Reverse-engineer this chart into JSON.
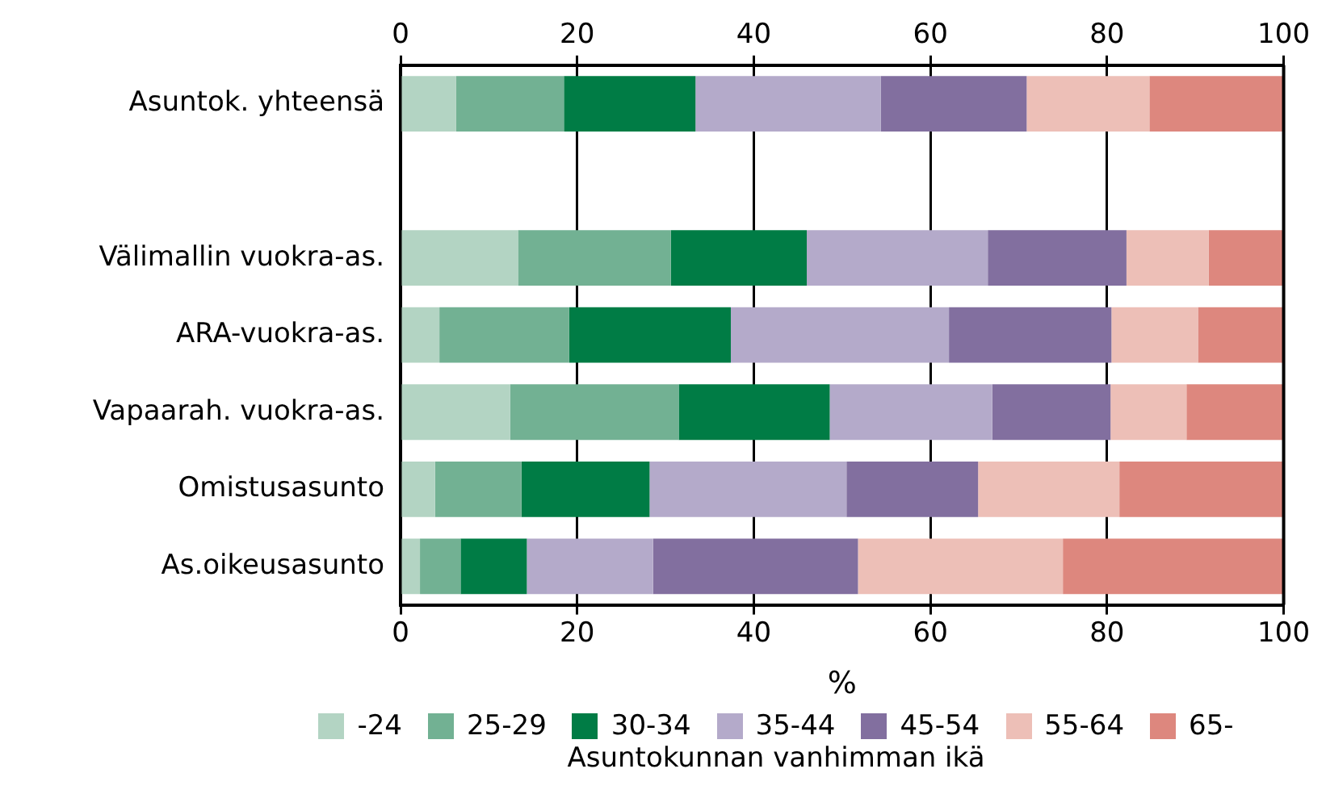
{
  "chart_data": {
    "type": "bar",
    "orientation": "horizontal",
    "stacked": true,
    "categories": [
      "Asuntok. yhteensä",
      null,
      "Välimallin vuokra-as.",
      "ARA-vuokra-as.",
      "Vapaarah. vuokra-as.",
      "Omistusasunto",
      "As.oikeusasunto"
    ],
    "series": [
      {
        "name": "-24",
        "color": "#b3d4c3",
        "values": [
          6.3,
          null,
          13.3,
          4.4,
          12.4,
          3.9,
          2.2
        ]
      },
      {
        "name": "25-29",
        "color": "#72b193",
        "values": [
          12.2,
          null,
          17.3,
          14.7,
          19.1,
          9.8,
          4.6
        ]
      },
      {
        "name": "30-34",
        "color": "#007c45",
        "values": [
          14.9,
          null,
          15.4,
          18.3,
          17.1,
          14.5,
          7.5
        ]
      },
      {
        "name": "35-44",
        "color": "#b4aaca",
        "values": [
          21.0,
          null,
          20.5,
          24.7,
          18.4,
          22.3,
          14.3
        ]
      },
      {
        "name": "45-54",
        "color": "#826f9f",
        "values": [
          16.5,
          null,
          15.7,
          18.4,
          13.4,
          14.9,
          23.2
        ]
      },
      {
        "name": "55-64",
        "color": "#edbfb7",
        "values": [
          13.9,
          null,
          9.3,
          9.8,
          8.6,
          16.0,
          23.2
        ]
      },
      {
        "name": "65-",
        "color": "#dd877e",
        "values": [
          15.2,
          null,
          8.5,
          9.7,
          11.0,
          18.6,
          25.0
        ]
      }
    ],
    "xlabel": "%",
    "legend_title": "Asuntokunnan vanhimman ikä",
    "xlim": [
      0,
      100
    ],
    "xticks": [
      0,
      20,
      40,
      60,
      80,
      100
    ],
    "x2lim": [
      0,
      100
    ],
    "x2ticks": [
      0,
      20,
      40,
      60,
      80,
      100
    ],
    "grid": "x",
    "legend": "bottom"
  }
}
